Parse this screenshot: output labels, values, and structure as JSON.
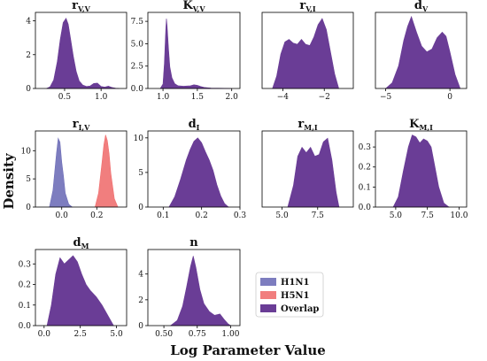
{
  "figure": {
    "ylabel": "Density",
    "xlabel": "Log Parameter Value",
    "legend": [
      {
        "label": "H1N1",
        "color": "#6f6fb8"
      },
      {
        "label": "H5N1",
        "color": "#f07070"
      },
      {
        "label": "Overlap",
        "color": "#6a3d96"
      }
    ]
  },
  "chart_data": [
    {
      "type": "area",
      "title_main": "r",
      "title_sub": "V,V",
      "xlim": [
        0.1,
        1.35
      ],
      "ylim": [
        0,
        4.5
      ],
      "xticks": [
        0.5,
        1.0
      ],
      "xtick_labels": [
        "0.5",
        "1.0"
      ],
      "yticks": [
        0,
        2,
        4
      ],
      "ytick_labels": [
        "0",
        "2",
        "4"
      ],
      "series": [
        {
          "fill": "overlap",
          "x": [
            0.25,
            0.3,
            0.35,
            0.4,
            0.44,
            0.48,
            0.52,
            0.55,
            0.58,
            0.62,
            0.66,
            0.7,
            0.75,
            0.8,
            0.85,
            0.9,
            0.95,
            1.0,
            1.05,
            1.1,
            1.15,
            1.2,
            1.25
          ],
          "y": [
            0.0,
            0.1,
            0.5,
            1.6,
            2.9,
            3.9,
            4.15,
            3.8,
            3.0,
            1.9,
            1.0,
            0.45,
            0.2,
            0.12,
            0.15,
            0.3,
            0.32,
            0.12,
            0.08,
            0.14,
            0.06,
            0.02,
            0.0
          ]
        }
      ]
    },
    {
      "type": "area",
      "title_main": "K",
      "title_sub": "V,V",
      "xlim": [
        0.78,
        2.12
      ],
      "ylim": [
        0,
        8.5
      ],
      "xticks": [
        1.0,
        1.5,
        2.0
      ],
      "xtick_labels": [
        "1.0",
        "1.5",
        "2.0"
      ],
      "yticks": [
        0,
        2.5,
        5.0,
        7.5
      ],
      "ytick_labels": [
        "0.0",
        "2.5",
        "5.0",
        "7.5"
      ],
      "series": [
        {
          "fill": "overlap",
          "x": [
            0.96,
            1.0,
            1.02,
            1.04,
            1.05,
            1.06,
            1.08,
            1.1,
            1.13,
            1.17,
            1.22,
            1.3,
            1.4,
            1.45,
            1.5,
            1.55,
            1.6,
            1.7,
            1.8,
            1.9,
            2.0
          ],
          "y": [
            0.0,
            0.5,
            2.8,
            6.5,
            7.8,
            7.0,
            4.5,
            2.4,
            1.2,
            0.55,
            0.3,
            0.25,
            0.3,
            0.42,
            0.35,
            0.22,
            0.12,
            0.05,
            0.03,
            0.02,
            0.0
          ]
        }
      ]
    },
    {
      "type": "area",
      "title_main": "r",
      "title_sub": "V,I",
      "xlim": [
        -5.0,
        -0.6
      ],
      "ylim": [
        0,
        0.62
      ],
      "xticks": [
        -4,
        -2
      ],
      "xtick_labels": [
        "−4",
        "−2"
      ],
      "yticks": [],
      "ytick_labels": [],
      "series": [
        {
          "fill": "overlap",
          "x": [
            -4.5,
            -4.3,
            -4.1,
            -3.9,
            -3.7,
            -3.5,
            -3.3,
            -3.1,
            -2.9,
            -2.7,
            -2.5,
            -2.3,
            -2.1,
            -1.9,
            -1.7,
            -1.5,
            -1.3
          ],
          "y": [
            0.0,
            0.1,
            0.28,
            0.38,
            0.4,
            0.37,
            0.36,
            0.4,
            0.36,
            0.35,
            0.42,
            0.52,
            0.57,
            0.48,
            0.3,
            0.12,
            0.0
          ]
        }
      ]
    },
    {
      "type": "area",
      "title_main": "d",
      "title_sub": "V",
      "xlim": [
        -5.8,
        1.3
      ],
      "ylim": [
        0,
        0.27
      ],
      "xticks": [
        -5,
        0
      ],
      "xtick_labels": [
        "−5",
        "0"
      ],
      "yticks": [],
      "ytick_labels": [],
      "series": [
        {
          "fill": "overlap",
          "x": [
            -5.0,
            -4.5,
            -4.0,
            -3.6,
            -3.3,
            -3.0,
            -2.6,
            -2.2,
            -1.8,
            -1.4,
            -1.0,
            -0.6,
            -0.3,
            0.0,
            0.4,
            0.8
          ],
          "y": [
            0.0,
            0.02,
            0.08,
            0.17,
            0.22,
            0.255,
            0.2,
            0.15,
            0.13,
            0.14,
            0.18,
            0.2,
            0.185,
            0.13,
            0.05,
            0.0
          ]
        }
      ]
    },
    {
      "type": "area",
      "title_main": "r",
      "title_sub": "I,V",
      "xlim": [
        -0.15,
        0.37
      ],
      "ylim": [
        0,
        13.5
      ],
      "xticks": [
        0.0,
        0.2
      ],
      "xtick_labels": [
        "0.0",
        "0.2"
      ],
      "yticks": [
        0,
        5,
        10
      ],
      "ytick_labels": [
        "0",
        "5",
        "10"
      ],
      "series": [
        {
          "fill": "h1n1",
          "x": [
            -0.07,
            -0.05,
            -0.03,
            -0.02,
            -0.01,
            0.0,
            0.01,
            0.02,
            0.04,
            0.06
          ],
          "y": [
            0.0,
            3.0,
            9.5,
            12.2,
            11.5,
            8.0,
            5.5,
            2.5,
            0.5,
            0.0
          ]
        },
        {
          "fill": "h5n1",
          "x": [
            0.19,
            0.21,
            0.23,
            0.24,
            0.25,
            0.26,
            0.27,
            0.28,
            0.3,
            0.32
          ],
          "y": [
            0.0,
            2.5,
            8.0,
            11.0,
            12.8,
            11.8,
            9.5,
            6.0,
            1.5,
            0.0
          ]
        }
      ]
    },
    {
      "type": "area",
      "title_main": "d",
      "title_sub": "I",
      "xlim": [
        0.06,
        0.3
      ],
      "ylim": [
        0,
        11
      ],
      "xticks": [
        0.1,
        0.2,
        0.3
      ],
      "xtick_labels": [
        "0.1",
        "0.2",
        "0.3"
      ],
      "yticks": [
        0,
        5,
        10
      ],
      "ytick_labels": [
        "0",
        "5",
        "10"
      ],
      "series": [
        {
          "fill": "overlap",
          "x": [
            0.115,
            0.13,
            0.145,
            0.16,
            0.17,
            0.18,
            0.19,
            0.2,
            0.21,
            0.22,
            0.23,
            0.24,
            0.25,
            0.26,
            0.27
          ],
          "y": [
            0.0,
            1.5,
            4.0,
            6.8,
            8.3,
            9.5,
            10.0,
            9.3,
            8.0,
            6.8,
            5.3,
            3.2,
            1.6,
            0.5,
            0.0
          ]
        }
      ]
    },
    {
      "type": "area",
      "title_main": "r",
      "title_sub": "M,I",
      "xlim": [
        3.6,
        10.0
      ],
      "ylim": [
        0,
        0.42
      ],
      "xticks": [
        5.0,
        7.5
      ],
      "xtick_labels": [
        "5.0",
        "7.5"
      ],
      "yticks": [],
      "ytick_labels": [],
      "series": [
        {
          "fill": "overlap",
          "x": [
            5.4,
            5.8,
            6.1,
            6.4,
            6.7,
            7.0,
            7.3,
            7.6,
            7.9,
            8.2,
            8.5,
            8.8,
            9.0
          ],
          "y": [
            0.0,
            0.12,
            0.28,
            0.33,
            0.3,
            0.33,
            0.28,
            0.29,
            0.36,
            0.38,
            0.26,
            0.08,
            0.0
          ]
        }
      ]
    },
    {
      "type": "area",
      "title_main": "K",
      "title_sub": "M,I",
      "xlim": [
        3.4,
        10.6
      ],
      "ylim": [
        0,
        0.38
      ],
      "xticks": [
        5.0,
        7.5,
        10.0
      ],
      "xtick_labels": [
        "5.0",
        "7.5",
        "10.0"
      ],
      "yticks": [
        0.0,
        0.1,
        0.2,
        0.3
      ],
      "ytick_labels": [
        "0.0",
        "0.1",
        "0.2",
        "0.3"
      ],
      "series": [
        {
          "fill": "overlap",
          "x": [
            4.8,
            5.2,
            5.6,
            6.0,
            6.3,
            6.6,
            6.9,
            7.2,
            7.5,
            7.8,
            8.1,
            8.4,
            8.8,
            9.2
          ],
          "y": [
            0.0,
            0.05,
            0.18,
            0.3,
            0.36,
            0.35,
            0.32,
            0.34,
            0.33,
            0.3,
            0.2,
            0.1,
            0.02,
            0.0
          ]
        }
      ]
    },
    {
      "type": "area",
      "title_main": "d",
      "title_sub": "M",
      "xlim": [
        -0.6,
        5.7
      ],
      "ylim": [
        0,
        0.37
      ],
      "xticks": [
        0.0,
        2.5,
        5.0
      ],
      "xtick_labels": [
        "0.0",
        "2.5",
        "5.0"
      ],
      "yticks": [
        0.0,
        0.1,
        0.2,
        0.3
      ],
      "ytick_labels": [
        "0.0",
        "0.1",
        "0.2",
        "0.3"
      ],
      "series": [
        {
          "fill": "overlap",
          "x": [
            0.2,
            0.5,
            0.8,
            1.1,
            1.4,
            1.7,
            2.0,
            2.3,
            2.6,
            2.9,
            3.2,
            3.6,
            4.0,
            4.4,
            4.8
          ],
          "y": [
            0.0,
            0.1,
            0.25,
            0.33,
            0.3,
            0.32,
            0.34,
            0.31,
            0.25,
            0.2,
            0.17,
            0.14,
            0.1,
            0.05,
            0.0
          ]
        }
      ]
    },
    {
      "type": "area",
      "title_main": "n",
      "title_sub": "",
      "xlim": [
        0.38,
        1.07
      ],
      "ylim": [
        0,
        5.9
      ],
      "xticks": [
        0.5,
        0.75,
        1.0
      ],
      "xtick_labels": [
        "0.50",
        "0.75",
        "1.00"
      ],
      "yticks": [
        0,
        2,
        4
      ],
      "ytick_labels": [
        "0",
        "2",
        "4"
      ],
      "series": [
        {
          "fill": "overlap",
          "x": [
            0.55,
            0.6,
            0.64,
            0.67,
            0.7,
            0.72,
            0.74,
            0.77,
            0.8,
            0.84,
            0.88,
            0.92,
            0.95,
            0.98,
            1.0
          ],
          "y": [
            0.0,
            0.4,
            1.5,
            3.0,
            4.6,
            5.4,
            4.5,
            2.8,
            1.7,
            1.1,
            0.8,
            0.9,
            0.5,
            0.15,
            0.0
          ]
        }
      ]
    }
  ]
}
